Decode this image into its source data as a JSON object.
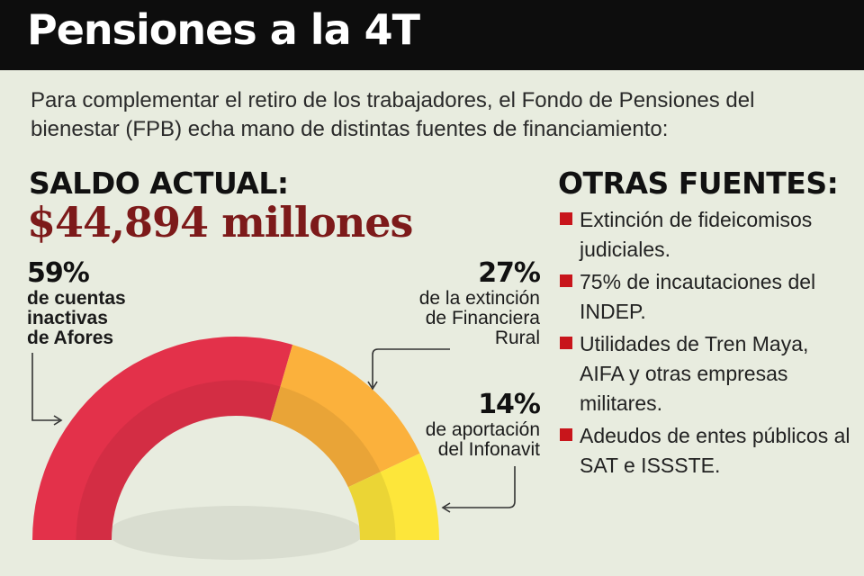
{
  "header": {
    "title": "Pensiones a la 4T"
  },
  "intro": "Para complementar el retiro de los trabajadores, el Fondo de Pensiones del bienestar (FPB) echa mano de distintas fuentes de financiamiento:",
  "saldo": {
    "label": "SALDO ACTUAL:",
    "value": "$44,894 millones"
  },
  "otras": {
    "title": "OTRAS FUENTES:",
    "items": [
      "Extinción de fideicomisos judiciales.",
      "75% de incautaciones del INDEP.",
      "Utilidades de Tren Maya, AIFA y otras empresas militares.",
      "Adeudos de entes públicos al SAT e ISSSTE."
    ]
  },
  "chart_data": {
    "type": "pie",
    "style": "semicircle-donut",
    "slices": [
      {
        "value": 59,
        "pct_label": "59%",
        "lines": [
          "de cuentas",
          "inactivas",
          "de Afores"
        ],
        "color": "#e3314a"
      },
      {
        "value": 27,
        "pct_label": "27%",
        "lines": [
          "de la extinción",
          "de Financiera Rural"
        ],
        "color": "#fbb13c"
      },
      {
        "value": 14,
        "pct_label": "14%",
        "lines": [
          "de aportación",
          "del Infonavit"
        ],
        "color": "#fde63a"
      }
    ]
  },
  "colors": {
    "accent": "#c8151b",
    "value_color": "#7d1a1a",
    "background": "#e8ecdf"
  }
}
